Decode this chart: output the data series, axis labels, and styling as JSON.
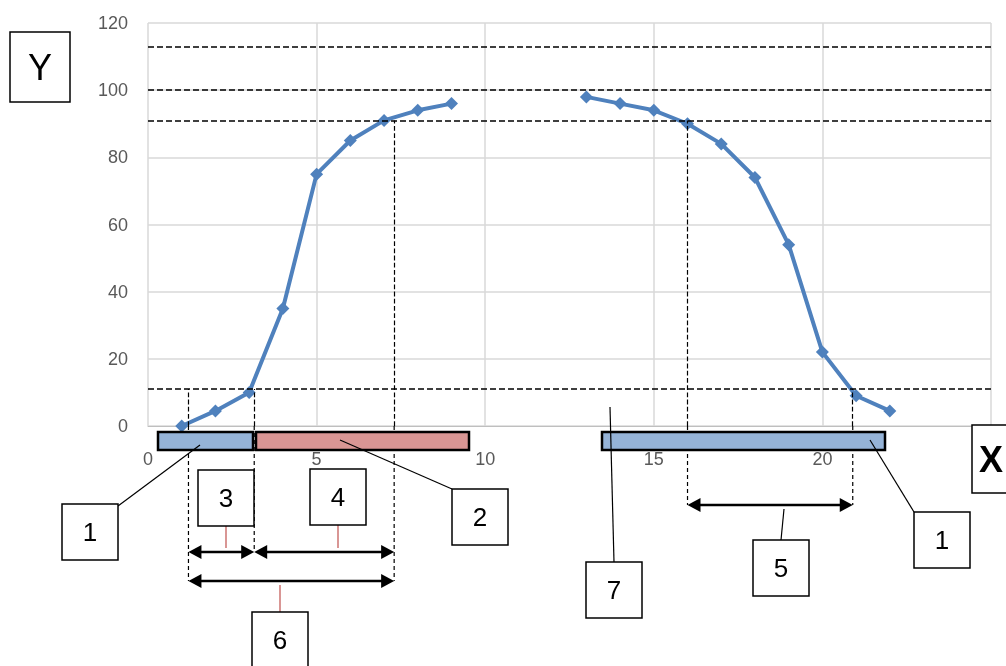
{
  "chart_data": {
    "type": "line",
    "xlabel": "X",
    "ylabel": "Y",
    "x": [
      1,
      2,
      3,
      4,
      5,
      6,
      7,
      8,
      9,
      10,
      11,
      12,
      13,
      14,
      15,
      16,
      17,
      18,
      19,
      20,
      21,
      22
    ],
    "series": [
      {
        "color": "#4f81bd",
        "values": [
          0,
          4.5,
          10,
          35,
          75,
          85,
          91,
          94,
          96,
          null,
          null,
          null,
          98,
          96,
          94,
          90,
          84,
          74,
          54,
          22,
          9,
          4.5
        ]
      }
    ],
    "xlim": [
      0,
      25
    ],
    "xticks": [
      0,
      5,
      10,
      15,
      20
    ],
    "ylim": [
      0,
      120
    ],
    "yticks": [
      0,
      20,
      40,
      60,
      80,
      100,
      120
    ],
    "grid": true,
    "marker": "diamond",
    "line_style": "solid",
    "ref_lines": [
      {
        "axis": "y",
        "value": 113,
        "line_style": "dashed"
      },
      {
        "axis": "y",
        "value": 100,
        "line_style": "dashed"
      },
      {
        "axis": "y",
        "value": 91,
        "line_style": "dashed"
      },
      {
        "axis": "y",
        "value": 11,
        "line_style": "dashed"
      },
      {
        "axis": "x",
        "value": 1.2,
        "line_style": "dashed"
      },
      {
        "axis": "x",
        "value": 3.15,
        "line_style": "dashed"
      },
      {
        "axis": "x",
        "value": 7.3,
        "line_style": "dashed"
      },
      {
        "axis": "x",
        "value": 16,
        "line_style": "dashed"
      },
      {
        "axis": "x",
        "value": 20.9,
        "line_style": "dashed"
      }
    ],
    "annotations": [
      "1",
      "2",
      "1",
      "3",
      "4",
      "5",
      "6",
      "7"
    ]
  }
}
